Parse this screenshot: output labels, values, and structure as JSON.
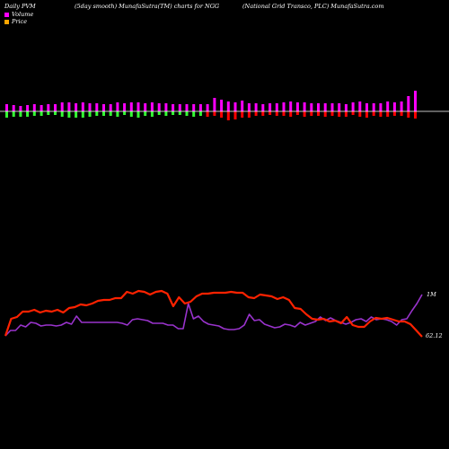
{
  "header": {
    "left": "Daily PVM",
    "middle": "(5day smooth) MunafaSutra(TM) charts for NGG",
    "right": "(National Grid Transco, PLC) MunafaSutra.com"
  },
  "legend": [
    {
      "label": "Volume",
      "color": "#ff00ff"
    },
    {
      "label": "Price",
      "color": "#ffa500"
    }
  ],
  "colors": {
    "background": "#000000",
    "volume_up": "#ff00ff",
    "volume_down_green": "#33ff33",
    "volume_down_red": "#ff0000",
    "baseline": "#ffffff",
    "price_line": "#ff2200",
    "volume_line": "#9933cc"
  },
  "chart_data": {
    "type": "bar",
    "title": "(5day smooth) MunafaSutra(TM) charts for NGG",
    "volume_bars": {
      "up": [
        8,
        7,
        6,
        7,
        8,
        7,
        8,
        8,
        10,
        10,
        9,
        10,
        9,
        9,
        8,
        8,
        10,
        9,
        10,
        10,
        9,
        10,
        9,
        9,
        8,
        8,
        8,
        8,
        8,
        8,
        15,
        13,
        11,
        10,
        12,
        9,
        9,
        8,
        9,
        9,
        10,
        11,
        10,
        10,
        9,
        9,
        9,
        9,
        9,
        8,
        10,
        11,
        9,
        9,
        9,
        11,
        10,
        11,
        17,
        23
      ],
      "down": [
        7,
        6,
        6,
        6,
        5,
        5,
        4,
        4,
        6,
        7,
        7,
        7,
        6,
        5,
        5,
        5,
        6,
        4,
        6,
        7,
        5,
        6,
        4,
        5,
        4,
        4,
        5,
        6,
        5,
        6,
        5,
        7,
        10,
        9,
        7,
        7,
        5,
        5,
        4,
        5,
        5,
        6,
        4,
        6,
        5,
        5,
        6,
        5,
        6,
        6,
        4,
        6,
        7,
        5,
        6,
        6,
        5,
        5,
        7,
        8
      ],
      "down_color": [
        "green",
        "green",
        "green",
        "green",
        "green",
        "green",
        "green",
        "green",
        "green",
        "green",
        "green",
        "green",
        "green",
        "green",
        "green",
        "green",
        "green",
        "green",
        "green",
        "green",
        "green",
        "green",
        "green",
        "green",
        "green",
        "green",
        "green",
        "green",
        "green",
        "red",
        "red",
        "red",
        "red",
        "red",
        "red",
        "red",
        "red",
        "red",
        "red",
        "red",
        "red",
        "red",
        "red",
        "red",
        "red",
        "red",
        "red",
        "red",
        "red",
        "red",
        "red",
        "red",
        "red",
        "red",
        "red",
        "red",
        "red",
        "red",
        "red",
        "red"
      ]
    },
    "series": [
      {
        "name": "Price",
        "values": [
          374,
          355,
          353,
          347,
          347,
          345,
          348,
          346,
          347,
          345,
          348,
          343,
          342,
          339,
          340,
          338,
          335,
          334,
          334,
          332,
          332,
          325,
          327,
          324,
          325,
          328,
          325,
          324,
          327,
          341,
          331,
          338,
          336,
          330,
          327,
          327,
          326,
          326,
          326,
          325,
          326,
          326,
          331,
          332,
          328,
          329,
          330,
          333,
          331,
          334,
          343,
          344,
          350,
          355,
          356,
          355,
          358,
          357,
          360,
          353,
          362,
          364,
          364,
          358,
          354,
          355,
          354,
          356,
          358,
          358,
          361,
          368,
          375
        ]
      },
      {
        "name": "Volume",
        "values": [
          374,
          368,
          368,
          362,
          364,
          359,
          360,
          363,
          362,
          362,
          363,
          362,
          359,
          361,
          352,
          359,
          359,
          359,
          359,
          359,
          359,
          359,
          359,
          360,
          362,
          356,
          355,
          356,
          357,
          360,
          360,
          360,
          362,
          362,
          366,
          366,
          338,
          355,
          352,
          358,
          361,
          362,
          363,
          366,
          367,
          367,
          366,
          362,
          350,
          357,
          356,
          361,
          363,
          365,
          364,
          361,
          362,
          364,
          359,
          362,
          360,
          358,
          353,
          357,
          354,
          357,
          359,
          361,
          359,
          356,
          355,
          358,
          353,
          356,
          355,
          356,
          358,
          362,
          356,
          355,
          346,
          338,
          328
        ]
      }
    ],
    "annotations": [
      "1M",
      "62.12"
    ]
  }
}
